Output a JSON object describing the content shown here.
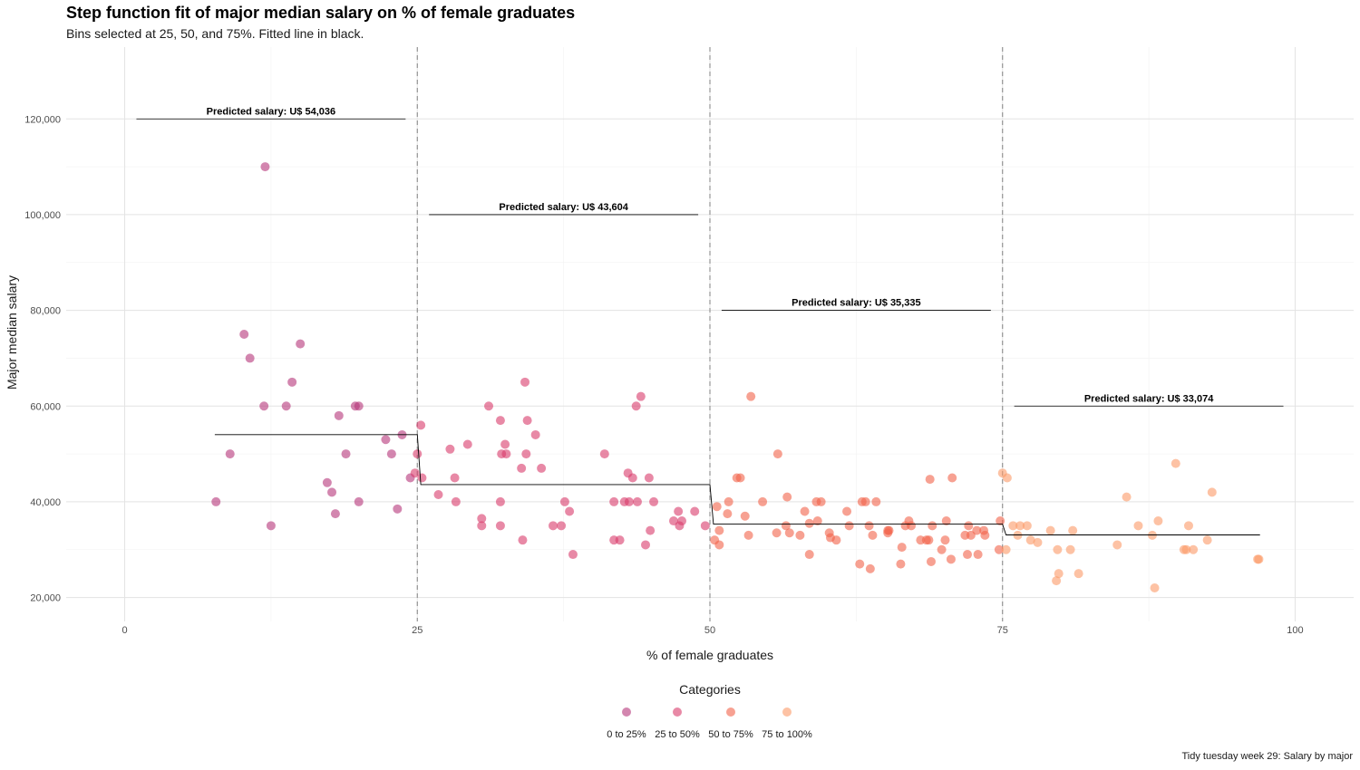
{
  "chart_data": {
    "type": "scatter",
    "title": "Step function fit of major median salary on % of female graduates",
    "subtitle": "Bins selected at 25, 50, and 75%. Fitted line in black.",
    "caption": "Tidy tuesday week 29: Salary by major",
    "xlabel": "% of female graduates",
    "ylabel": "Major median salary",
    "xlim": [
      -5,
      105
    ],
    "ylim": [
      15000,
      135000
    ],
    "x_ticks": [
      0,
      25,
      50,
      75,
      100
    ],
    "x_tick_labels": [
      "0",
      "25",
      "50",
      "75",
      "100"
    ],
    "y_ticks": [
      20000,
      40000,
      60000,
      80000,
      100000,
      120000
    ],
    "y_tick_labels": [
      "20,000",
      "40,000",
      "60,000",
      "80,000",
      "100,000",
      "120,000"
    ],
    "grid": true,
    "bin_breaks": [
      25,
      50,
      75
    ],
    "legend": {
      "title": "Categories",
      "position": "bottom",
      "entries": [
        {
          "label": "0 to 25%",
          "color": "#b5367a"
        },
        {
          "label": "25 to 50%",
          "color": "#d83a6a"
        },
        {
          "label": "50 to 75%",
          "color": "#f2624a"
        },
        {
          "label": "75 to 100%",
          "color": "#fb9a68"
        }
      ]
    },
    "fitted_line": {
      "color": "#000000",
      "x": [
        7.7,
        25,
        25.3,
        50,
        50.3,
        75,
        75.3,
        97
      ],
      "y": [
        54036,
        54036,
        43604,
        43604,
        35335,
        35335,
        33074,
        33074
      ]
    },
    "annotations": [
      {
        "label": "Predicted salary: U$ 54,036",
        "x_start": 1,
        "x_end": 24,
        "y": 120000
      },
      {
        "label": "Predicted salary: U$ 43,604",
        "x_start": 26,
        "x_end": 49,
        "y": 100000
      },
      {
        "label": "Predicted salary: U$ 35,335",
        "x_start": 51,
        "x_end": 74,
        "y": 80000
      },
      {
        "label": "Predicted salary: U$ 33,074",
        "x_start": 76,
        "x_end": 99,
        "y": 60000
      }
    ],
    "series": [
      {
        "name": "0 to 25%",
        "color": "#b5367a",
        "points": [
          [
            7.8,
            40000
          ],
          [
            9.0,
            50000
          ],
          [
            10.2,
            75000
          ],
          [
            10.7,
            70000
          ],
          [
            12.0,
            110000
          ],
          [
            11.9,
            60000
          ],
          [
            12.5,
            35000
          ],
          [
            13.8,
            60000
          ],
          [
            14.3,
            65000
          ],
          [
            15.0,
            73000
          ],
          [
            17.3,
            44000
          ],
          [
            17.7,
            42000
          ],
          [
            18.0,
            37500
          ],
          [
            18.3,
            58000
          ],
          [
            18.9,
            50000
          ],
          [
            19.7,
            60000
          ],
          [
            20.0,
            60000
          ],
          [
            20.0,
            40000
          ],
          [
            22.3,
            53000
          ],
          [
            22.8,
            50000
          ],
          [
            23.3,
            38500
          ],
          [
            23.7,
            54000
          ],
          [
            24.4,
            45000
          ]
        ]
      },
      {
        "name": "25 to 50%",
        "color": "#d83a6a",
        "points": [
          [
            24.8,
            46000
          ],
          [
            25.0,
            50000
          ],
          [
            25.3,
            56000
          ],
          [
            25.4,
            45000
          ],
          [
            26.8,
            41500
          ],
          [
            27.8,
            51000
          ],
          [
            28.2,
            45000
          ],
          [
            28.3,
            40000
          ],
          [
            29.3,
            52000
          ],
          [
            30.5,
            36500
          ],
          [
            30.5,
            35000
          ],
          [
            31.1,
            60000
          ],
          [
            32.1,
            57000
          ],
          [
            32.1,
            40000
          ],
          [
            32.1,
            35000
          ],
          [
            32.2,
            50000
          ],
          [
            32.5,
            52000
          ],
          [
            32.6,
            50000
          ],
          [
            33.9,
            47000
          ],
          [
            34.0,
            32000
          ],
          [
            34.2,
            65000
          ],
          [
            34.3,
            50000
          ],
          [
            34.4,
            57000
          ],
          [
            35.1,
            54000
          ],
          [
            35.6,
            47000
          ],
          [
            36.6,
            35000
          ],
          [
            37.3,
            35000
          ],
          [
            37.6,
            40000
          ],
          [
            38.0,
            38000
          ],
          [
            38.3,
            29000
          ],
          [
            41.0,
            50000
          ],
          [
            41.8,
            40000
          ],
          [
            41.8,
            32000
          ],
          [
            42.3,
            32000
          ],
          [
            42.7,
            40000
          ],
          [
            43.0,
            46000
          ],
          [
            43.1,
            40000
          ],
          [
            43.4,
            45000
          ],
          [
            43.8,
            40000
          ],
          [
            43.7,
            60000
          ],
          [
            44.1,
            62000
          ],
          [
            44.5,
            31000
          ],
          [
            44.8,
            45000
          ],
          [
            44.9,
            34000
          ],
          [
            45.2,
            40000
          ],
          [
            46.9,
            36000
          ],
          [
            47.3,
            38000
          ],
          [
            47.4,
            35000
          ],
          [
            47.6,
            36000
          ],
          [
            48.7,
            38000
          ],
          [
            49.6,
            35000
          ]
        ]
      },
      {
        "name": "50 to 75%",
        "color": "#f2624a",
        "points": [
          [
            50.4,
            32000
          ],
          [
            50.6,
            39000
          ],
          [
            50.8,
            31000
          ],
          [
            50.8,
            34000
          ],
          [
            51.5,
            37500
          ],
          [
            51.6,
            40000
          ],
          [
            52.3,
            45000
          ],
          [
            52.6,
            45000
          ],
          [
            53.0,
            37000
          ],
          [
            53.3,
            33000
          ],
          [
            53.5,
            62000
          ],
          [
            54.5,
            40000
          ],
          [
            55.7,
            33500
          ],
          [
            55.8,
            50000
          ],
          [
            56.5,
            35000
          ],
          [
            56.6,
            41000
          ],
          [
            56.8,
            33500
          ],
          [
            57.7,
            33000
          ],
          [
            58.1,
            38000
          ],
          [
            58.5,
            35500
          ],
          [
            58.5,
            29000
          ],
          [
            59.1,
            40000
          ],
          [
            59.2,
            36000
          ],
          [
            59.5,
            40000
          ],
          [
            60.2,
            33500
          ],
          [
            60.3,
            32500
          ],
          [
            60.8,
            32000
          ],
          [
            61.7,
            38000
          ],
          [
            61.9,
            35000
          ],
          [
            62.8,
            27000
          ],
          [
            63.0,
            40000
          ],
          [
            63.3,
            40000
          ],
          [
            63.7,
            26000
          ],
          [
            63.6,
            35000
          ],
          [
            63.9,
            33000
          ],
          [
            64.2,
            40000
          ],
          [
            65.2,
            34000
          ],
          [
            65.2,
            33500
          ],
          [
            65.3,
            34000
          ],
          [
            66.3,
            27000
          ],
          [
            66.4,
            30500
          ],
          [
            66.7,
            35000
          ],
          [
            67.0,
            36000
          ],
          [
            67.2,
            35000
          ],
          [
            68.0,
            32000
          ],
          [
            68.5,
            32000
          ],
          [
            68.7,
            32000
          ],
          [
            68.8,
            44700
          ],
          [
            68.9,
            27500
          ],
          [
            69.0,
            35000
          ],
          [
            69.8,
            30000
          ],
          [
            70.1,
            32000
          ],
          [
            70.2,
            36000
          ],
          [
            70.6,
            28000
          ],
          [
            70.7,
            45000
          ],
          [
            71.8,
            33000
          ],
          [
            72.0,
            29000
          ],
          [
            72.1,
            35000
          ],
          [
            72.3,
            33000
          ],
          [
            72.8,
            34000
          ],
          [
            72.9,
            29000
          ],
          [
            73.4,
            34000
          ],
          [
            73.5,
            33000
          ],
          [
            74.7,
            30000
          ],
          [
            74.8,
            36000
          ]
        ]
      },
      {
        "name": "75 to 100%",
        "color": "#fb9a68",
        "points": [
          [
            75.0,
            46000
          ],
          [
            75.3,
            30000
          ],
          [
            75.4,
            45000
          ],
          [
            75.9,
            35000
          ],
          [
            76.3,
            33000
          ],
          [
            76.5,
            35000
          ],
          [
            77.1,
            35000
          ],
          [
            77.4,
            32000
          ],
          [
            78.0,
            31500
          ],
          [
            79.1,
            34000
          ],
          [
            79.6,
            23500
          ],
          [
            79.8,
            25000
          ],
          [
            79.7,
            30000
          ],
          [
            80.8,
            30000
          ],
          [
            81.0,
            34000
          ],
          [
            81.5,
            25000
          ],
          [
            84.8,
            31000
          ],
          [
            85.6,
            41000
          ],
          [
            86.6,
            35000
          ],
          [
            87.8,
            33000
          ],
          [
            88.0,
            22000
          ],
          [
            88.3,
            36000
          ],
          [
            89.8,
            48000
          ],
          [
            90.5,
            30000
          ],
          [
            90.7,
            30000
          ],
          [
            90.9,
            35000
          ],
          [
            91.3,
            30000
          ],
          [
            92.5,
            32000
          ],
          [
            92.9,
            42000
          ],
          [
            96.8,
            28000
          ],
          [
            96.9,
            28000
          ]
        ]
      }
    ]
  }
}
